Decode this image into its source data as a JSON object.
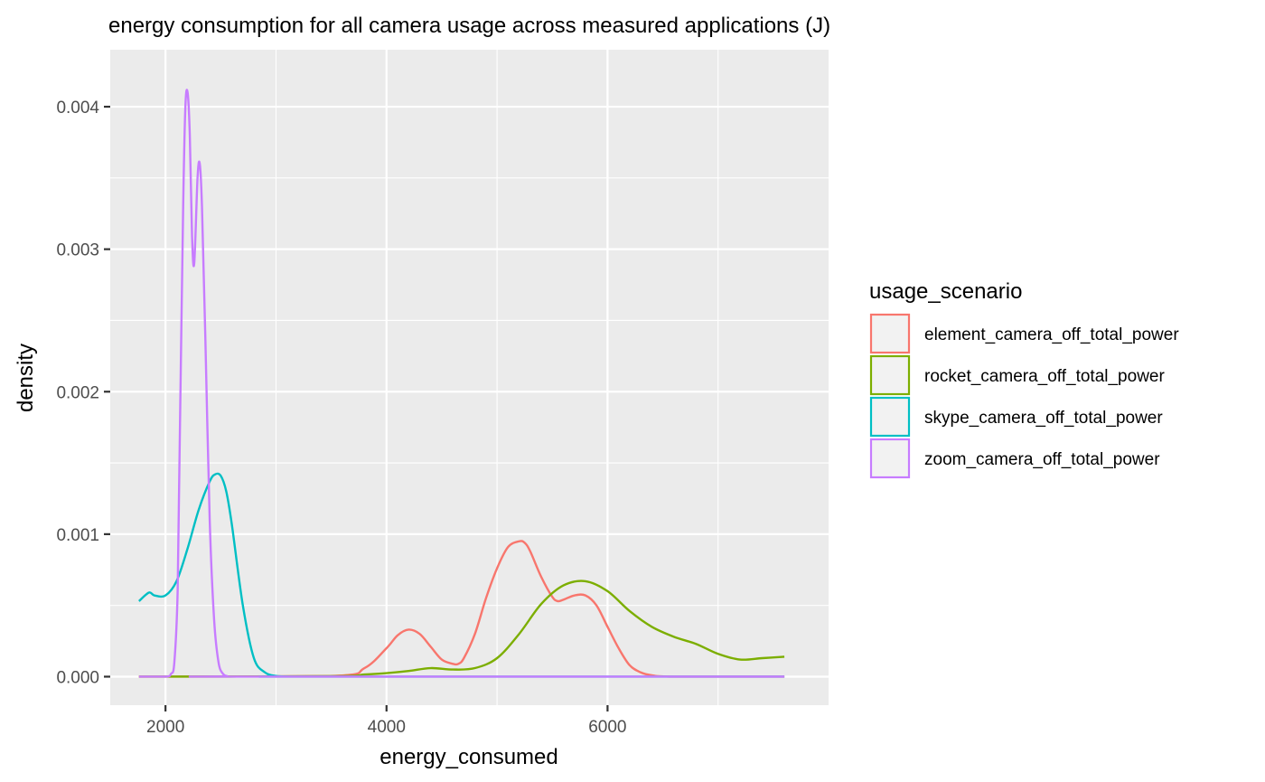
{
  "chart_data": {
    "type": "line",
    "title": "energy consumption for all camera usage across measured applications (J)",
    "xlabel": "energy_consumed",
    "ylabel": "density",
    "xlim": [
      1500,
      8000
    ],
    "ylim": [
      -0.0002,
      0.0044
    ],
    "x_ticks": [
      2000,
      4000,
      6000
    ],
    "x_tick_labels": [
      "2000",
      "4000",
      "6000"
    ],
    "y_ticks": [
      0,
      0.001,
      0.002,
      0.003,
      0.004
    ],
    "y_tick_labels": [
      "0.000",
      "0.001",
      "0.002",
      "0.003",
      "0.004"
    ],
    "grid": true,
    "legend_title": "usage_scenario",
    "legend_position": "right",
    "series": [
      {
        "name": "element_camera_off_total_power",
        "color": "#F8766D",
        "x": [
          1760,
          3500,
          3800,
          4000,
          4100,
          4200,
          4300,
          4400,
          4500,
          4600,
          4650,
          4700,
          4800,
          4900,
          5000,
          5100,
          5200,
          5250,
          5300,
          5400,
          5500,
          5550,
          5600,
          5700,
          5800,
          5900,
          6000,
          6100,
          6200,
          6300,
          6400,
          6600,
          7600
        ],
        "y": [
          0,
          5e-06,
          6e-05,
          0.0002,
          0.00029,
          0.00033,
          0.0003,
          0.00021,
          0.00012,
          9e-05,
          9e-05,
          0.00013,
          0.0003,
          0.00055,
          0.00076,
          0.00091,
          0.00095,
          0.00094,
          0.00088,
          0.0007,
          0.00056,
          0.00053,
          0.00054,
          0.00057,
          0.00057,
          0.0005,
          0.00035,
          0.0002,
          8e-05,
          3e-05,
          1e-05,
          0,
          0
        ]
      },
      {
        "name": "rocket_camera_off_total_power",
        "color": "#7CAE00",
        "x": [
          1760,
          3500,
          3800,
          4000,
          4200,
          4400,
          4600,
          4800,
          5000,
          5200,
          5400,
          5600,
          5800,
          6000,
          6200,
          6400,
          6600,
          6800,
          7000,
          7200,
          7400,
          7600
        ],
        "y": [
          0,
          3e-06,
          1.5e-05,
          2.5e-05,
          4e-05,
          6e-05,
          5e-05,
          6e-05,
          0.00013,
          0.0003,
          0.00051,
          0.00064,
          0.00067,
          0.0006,
          0.00046,
          0.00035,
          0.00028,
          0.00023,
          0.00016,
          0.00012,
          0.00013,
          0.00014
        ]
      },
      {
        "name": "skype_camera_off_total_power",
        "color": "#00BFC4",
        "x": [
          1760,
          1850,
          1900,
          2000,
          2100,
          2200,
          2300,
          2400,
          2450,
          2500,
          2550,
          2600,
          2700,
          2800,
          2900,
          3000,
          3100,
          3200,
          7600
        ],
        "y": [
          0.00053,
          0.00059,
          0.00057,
          0.00057,
          0.00067,
          0.0009,
          0.00117,
          0.00137,
          0.00142,
          0.00141,
          0.0013,
          0.00107,
          0.0005,
          0.00013,
          3e-05,
          5e-06,
          1e-06,
          0,
          0
        ]
      },
      {
        "name": "zoom_camera_off_total_power",
        "color": "#C77CFF",
        "x": [
          1760,
          2000,
          2050,
          2080,
          2110,
          2130,
          2160,
          2180,
          2200,
          2220,
          2240,
          2260,
          2290,
          2310,
          2330,
          2360,
          2400,
          2440,
          2480,
          2520,
          2560,
          2600,
          7600
        ],
        "y": [
          0,
          0,
          2e-05,
          0.0001,
          0.0006,
          0.0017,
          0.0033,
          0.004,
          0.0041,
          0.0038,
          0.0031,
          0.0029,
          0.0035,
          0.0036,
          0.0033,
          0.0024,
          0.0011,
          0.0004,
          0.0001,
          2e-05,
          3e-06,
          0,
          0
        ]
      }
    ]
  }
}
